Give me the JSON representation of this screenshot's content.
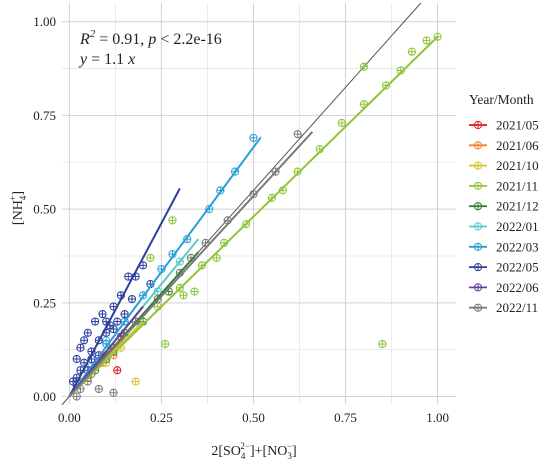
{
  "chart_data": {
    "type": "scatter",
    "xlabel_parts": [
      "2[SO",
      "4",
      "2−",
      "]+[NO",
      "3",
      "−",
      "]"
    ],
    "ylabel_parts": [
      "[NH",
      "4",
      "+",
      "]"
    ],
    "xlim": [
      -0.02,
      1.05
    ],
    "ylim": [
      -0.02,
      1.05
    ],
    "x_ticks": [
      0.0,
      0.25,
      0.5,
      0.75,
      1.0
    ],
    "x_tick_labels": [
      "0.00",
      "0.25",
      "0.50",
      "0.75",
      "1.00"
    ],
    "y_ticks": [
      0.0,
      0.25,
      0.5,
      0.75,
      1.0
    ],
    "y_tick_labels": [
      "0.00",
      "0.25",
      "0.50",
      "0.75",
      "1.00"
    ],
    "grid": true,
    "annotation": {
      "r2_prefix": "R",
      "r2_sup": "2",
      "r2_value": " = 0.91,  ",
      "p_label": "p",
      "p_value": " < 2.2e-16",
      "eq_y": "y",
      "eq_mid": " = 1.1 ",
      "eq_x": "x"
    },
    "reference_line": {
      "slope": 1.1,
      "color": "#555555"
    },
    "legend": {
      "title": "Year/Month",
      "position": "right"
    },
    "series": [
      {
        "name": "2021/05",
        "color": "#e41a1c",
        "fit": {
          "slope": 1.1,
          "x_max": 0.12
        },
        "points": [
          [
            0.1,
            0.11
          ],
          [
            0.13,
            0.07
          ],
          [
            0.08,
            0.09
          ],
          [
            0.06,
            0.07
          ]
        ]
      },
      {
        "name": "2021/06",
        "color": "#f58231",
        "fit": {
          "slope": 1.05,
          "x_max": 0.15
        },
        "points": [
          [
            0.05,
            0.05
          ],
          [
            0.09,
            0.09
          ],
          [
            0.12,
            0.11
          ]
        ]
      },
      {
        "name": "2021/10",
        "color": "#d6c62b",
        "fit": {
          "slope": 1.0,
          "x_max": 0.2
        },
        "points": [
          [
            0.18,
            0.04
          ],
          [
            0.14,
            0.13
          ],
          [
            0.1,
            0.09
          ]
        ]
      },
      {
        "name": "2021/11",
        "color": "#8fc43b",
        "fit": {
          "slope": 0.96,
          "x_max": 1.0
        },
        "points": [
          [
            0.85,
            0.14
          ],
          [
            0.93,
            0.92
          ],
          [
            1.0,
            0.96
          ],
          [
            0.97,
            0.95
          ],
          [
            0.86,
            0.83
          ],
          [
            0.9,
            0.87
          ],
          [
            0.8,
            0.88
          ],
          [
            0.8,
            0.78
          ],
          [
            0.74,
            0.73
          ],
          [
            0.68,
            0.66
          ],
          [
            0.62,
            0.6
          ],
          [
            0.55,
            0.53
          ],
          [
            0.48,
            0.46
          ],
          [
            0.42,
            0.41
          ],
          [
            0.36,
            0.35
          ],
          [
            0.3,
            0.29
          ],
          [
            0.22,
            0.37
          ],
          [
            0.28,
            0.47
          ],
          [
            0.31,
            0.27
          ],
          [
            0.24,
            0.24
          ],
          [
            0.18,
            0.2
          ],
          [
            0.34,
            0.28
          ],
          [
            0.26,
            0.14
          ],
          [
            0.4,
            0.37
          ],
          [
            0.58,
            0.55
          ]
        ]
      },
      {
        "name": "2021/12",
        "color": "#3a7d3a",
        "fit": {
          "slope": 1.1,
          "x_max": 0.35
        },
        "points": [
          [
            0.1,
            0.1
          ],
          [
            0.15,
            0.17
          ],
          [
            0.2,
            0.2
          ],
          [
            0.27,
            0.28
          ],
          [
            0.12,
            0.12
          ],
          [
            0.07,
            0.07
          ]
        ]
      },
      {
        "name": "2022/01",
        "color": "#5cc9c9",
        "fit": {
          "slope": 1.2,
          "x_max": 0.35
        },
        "points": [
          [
            0.1,
            0.15
          ],
          [
            0.18,
            0.2
          ],
          [
            0.24,
            0.28
          ],
          [
            0.3,
            0.36
          ],
          [
            0.06,
            0.08
          ]
        ]
      },
      {
        "name": "2022/03",
        "color": "#2a9fd6",
        "fit": {
          "slope": 1.33,
          "x_max": 0.52
        },
        "points": [
          [
            0.5,
            0.69
          ],
          [
            0.45,
            0.6
          ],
          [
            0.38,
            0.5
          ],
          [
            0.32,
            0.42
          ],
          [
            0.25,
            0.34
          ],
          [
            0.2,
            0.27
          ],
          [
            0.15,
            0.2
          ],
          [
            0.1,
            0.14
          ],
          [
            0.05,
            0.07
          ],
          [
            0.41,
            0.55
          ],
          [
            0.28,
            0.38
          ]
        ]
      },
      {
        "name": "2022/05",
        "color": "#2d3f9e",
        "fit": {
          "slope": 1.85,
          "x_max": 0.3
        },
        "points": [
          [
            0.02,
            0.05
          ],
          [
            0.04,
            0.09
          ],
          [
            0.06,
            0.12
          ],
          [
            0.08,
            0.15
          ],
          [
            0.1,
            0.2
          ],
          [
            0.12,
            0.24
          ],
          [
            0.14,
            0.27
          ],
          [
            0.16,
            0.32
          ],
          [
            0.05,
            0.17
          ],
          [
            0.03,
            0.13
          ],
          [
            0.07,
            0.2
          ],
          [
            0.09,
            0.22
          ],
          [
            0.11,
            0.19
          ],
          [
            0.13,
            0.2
          ],
          [
            0.15,
            0.22
          ],
          [
            0.18,
            0.32
          ],
          [
            0.2,
            0.35
          ],
          [
            0.22,
            0.3
          ],
          [
            0.01,
            0.04
          ],
          [
            0.03,
            0.07
          ],
          [
            0.06,
            0.1
          ],
          [
            0.08,
            0.11
          ],
          [
            0.04,
            0.15
          ],
          [
            0.02,
            0.1
          ],
          [
            0.17,
            0.26
          ],
          [
            0.1,
            0.17
          ],
          [
            0.12,
            0.18
          ]
        ]
      },
      {
        "name": "2022/06",
        "color": "#6a3d9a",
        "fit": {
          "slope": 1.2,
          "x_max": 0.2
        },
        "points": [
          [
            0.05,
            0.07
          ],
          [
            0.09,
            0.1
          ],
          [
            0.14,
            0.16
          ],
          [
            0.02,
            0.03
          ]
        ]
      },
      {
        "name": "2022/11",
        "color": "#7b7b7b",
        "fit": {
          "slope": 1.07,
          "x_max": 0.66
        },
        "points": [
          [
            0.62,
            0.7
          ],
          [
            0.56,
            0.6
          ],
          [
            0.5,
            0.54
          ],
          [
            0.43,
            0.47
          ],
          [
            0.37,
            0.41
          ],
          [
            0.3,
            0.33
          ],
          [
            0.24,
            0.26
          ],
          [
            0.18,
            0.2
          ],
          [
            0.12,
            0.13
          ],
          [
            0.06,
            0.06
          ],
          [
            0.08,
            0.02
          ],
          [
            0.12,
            0.01
          ],
          [
            0.03,
            0.02
          ],
          [
            0.02,
            0.0
          ],
          [
            0.05,
            0.04
          ],
          [
            0.33,
            0.37
          ]
        ]
      }
    ]
  }
}
